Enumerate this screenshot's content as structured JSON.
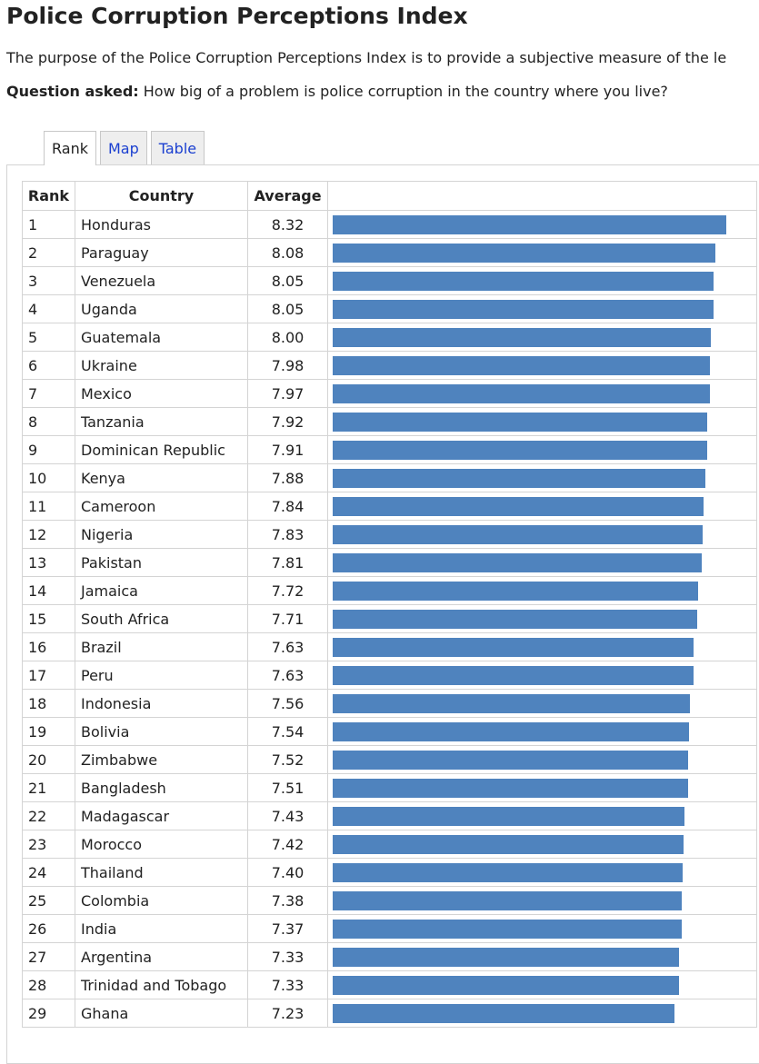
{
  "title": "Police Corruption Perceptions Index",
  "intro": "The purpose of the Police Corruption Perceptions Index is to provide a subjective measure of the le",
  "question_label": "Question asked:",
  "question_text": " How big of a problem is police corruption in the country where you live?",
  "tabs": [
    {
      "label": "Rank",
      "active": true
    },
    {
      "label": "Map",
      "active": false
    },
    {
      "label": "Table",
      "active": false
    }
  ],
  "table": {
    "headers": [
      "Rank",
      "Country",
      "Average",
      ""
    ],
    "bar_color": "#4f83be",
    "bar_max": 8.32,
    "rows": [
      {
        "rank": "1",
        "country": "Honduras",
        "average": "8.32"
      },
      {
        "rank": "2",
        "country": "Paraguay",
        "average": "8.08"
      },
      {
        "rank": "3",
        "country": "Venezuela",
        "average": "8.05"
      },
      {
        "rank": "4",
        "country": "Uganda",
        "average": "8.05"
      },
      {
        "rank": "5",
        "country": "Guatemala",
        "average": "8.00"
      },
      {
        "rank": "6",
        "country": "Ukraine",
        "average": "7.98"
      },
      {
        "rank": "7",
        "country": "Mexico",
        "average": "7.97"
      },
      {
        "rank": "8",
        "country": "Tanzania",
        "average": "7.92"
      },
      {
        "rank": "9",
        "country": "Dominican Republic",
        "average": "7.91"
      },
      {
        "rank": "10",
        "country": "Kenya",
        "average": "7.88"
      },
      {
        "rank": "11",
        "country": "Cameroon",
        "average": "7.84"
      },
      {
        "rank": "12",
        "country": "Nigeria",
        "average": "7.83"
      },
      {
        "rank": "13",
        "country": "Pakistan",
        "average": "7.81"
      },
      {
        "rank": "14",
        "country": "Jamaica",
        "average": "7.72"
      },
      {
        "rank": "15",
        "country": "South Africa",
        "average": "7.71"
      },
      {
        "rank": "16",
        "country": "Brazil",
        "average": "7.63"
      },
      {
        "rank": "17",
        "country": "Peru",
        "average": "7.63"
      },
      {
        "rank": "18",
        "country": "Indonesia",
        "average": "7.56"
      },
      {
        "rank": "19",
        "country": "Bolivia",
        "average": "7.54"
      },
      {
        "rank": "20",
        "country": "Zimbabwe",
        "average": "7.52"
      },
      {
        "rank": "21",
        "country": "Bangladesh",
        "average": "7.51"
      },
      {
        "rank": "22",
        "country": "Madagascar",
        "average": "7.43"
      },
      {
        "rank": "23",
        "country": "Morocco",
        "average": "7.42"
      },
      {
        "rank": "24",
        "country": "Thailand",
        "average": "7.40"
      },
      {
        "rank": "25",
        "country": "Colombia",
        "average": "7.38"
      },
      {
        "rank": "26",
        "country": "India",
        "average": "7.37"
      },
      {
        "rank": "27",
        "country": "Argentina",
        "average": "7.33"
      },
      {
        "rank": "28",
        "country": "Trinidad and Tobago",
        "average": "7.33"
      },
      {
        "rank": "29",
        "country": "Ghana",
        "average": "7.23"
      }
    ]
  }
}
